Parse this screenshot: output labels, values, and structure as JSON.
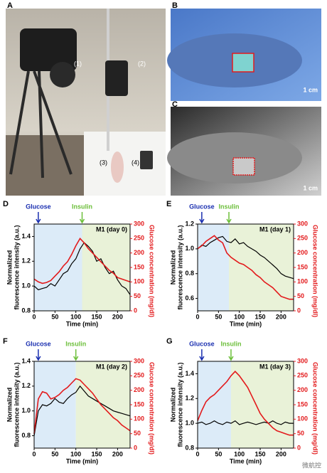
{
  "panels": {
    "A": {
      "label": "A",
      "annotations": [
        "(1)",
        "(2)",
        "(3)",
        "(4)"
      ]
    },
    "B": {
      "label": "B",
      "scale_bar": "1 cm"
    },
    "C": {
      "label": "C",
      "scale_bar": "1 cm"
    }
  },
  "watermark": "微航控",
  "chart_data": [
    {
      "type": "line",
      "panel": "D",
      "title": "M1 (day 0)",
      "xlabel": "Time (min)",
      "ylabel": [
        "Normalized",
        "fluorescence intensity (a.u.)"
      ],
      "y2label": "Glucose concentration (mg/dl)",
      "annotations": [
        {
          "text": "Glucose",
          "x": 10,
          "color": "#1a2fb0"
        },
        {
          "text": "Insulin",
          "x": 115,
          "color": "#6cbf3a"
        }
      ],
      "x": [
        0,
        10,
        20,
        30,
        40,
        50,
        60,
        70,
        80,
        90,
        100,
        110,
        120,
        130,
        140,
        150,
        160,
        170,
        180,
        190,
        200,
        210,
        220,
        230
      ],
      "series": [
        {
          "name": "Fluorescence",
          "color": "#000000",
          "values": [
            1.0,
            0.97,
            0.98,
            0.99,
            1.02,
            1.0,
            1.05,
            1.1,
            1.12,
            1.18,
            1.22,
            1.3,
            1.35,
            1.32,
            1.28,
            1.2,
            1.22,
            1.15,
            1.1,
            1.12,
            1.05,
            1.0,
            0.98,
            0.93
          ]
        },
        {
          "name": "Glucose",
          "color": "#e31a1c",
          "axis": "y2",
          "values": [
            110,
            100,
            95,
            98,
            105,
            120,
            135,
            155,
            170,
            195,
            225,
            250,
            235,
            215,
            200,
            185,
            170,
            155,
            140,
            130,
            115,
            110,
            105,
            100
          ]
        }
      ],
      "xlim": [
        0,
        230
      ],
      "xticks": [
        0,
        50,
        100,
        150,
        200
      ],
      "ylim": [
        0.8,
        1.5
      ],
      "yticks": [
        0.8,
        {
          "value": 1,
          "label": "1.0"
        },
        1.2,
        1.4
      ],
      "y2lim": [
        0,
        300
      ],
      "y2ticks": [
        0,
        50,
        100,
        150,
        200,
        250,
        300
      ]
    },
    {
      "type": "line",
      "panel": "E",
      "title": "M1 (day 1)",
      "xlabel": "Time (min)",
      "ylabel": [
        "Normalized",
        "fluorescence intensity (a.u.)"
      ],
      "y2label": "Glucose concentration (mg/dl)",
      "annotations": [
        {
          "text": "Glucose",
          "x": 10,
          "color": "#1a2fb0"
        },
        {
          "text": "Insulin",
          "x": 75,
          "color": "#6cbf3a"
        }
      ],
      "x": [
        0,
        10,
        20,
        30,
        40,
        50,
        60,
        70,
        80,
        90,
        100,
        110,
        120,
        130,
        140,
        150,
        160,
        170,
        180,
        190,
        200,
        210,
        220,
        230
      ],
      "series": [
        {
          "name": "Fluorescence",
          "color": "#000000",
          "values": [
            1.0,
            1.03,
            1.02,
            1.05,
            1.07,
            1.09,
            1.1,
            1.06,
            1.05,
            1.08,
            1.04,
            1.05,
            1.02,
            1.0,
            0.98,
            0.95,
            0.93,
            0.9,
            0.87,
            0.84,
            0.8,
            0.78,
            0.77,
            0.76
          ]
        },
        {
          "name": "Glucose",
          "color": "#e31a1c",
          "axis": "y2",
          "values": [
            215,
            225,
            240,
            250,
            260,
            245,
            235,
            200,
            185,
            175,
            165,
            160,
            150,
            140,
            125,
            115,
            100,
            90,
            80,
            65,
            50,
            45,
            40,
            40
          ]
        }
      ],
      "xlim": [
        0,
        230
      ],
      "xticks": [
        0,
        50,
        100,
        150,
        200
      ],
      "ylim": [
        0.5,
        1.2
      ],
      "yticks": [
        0.6,
        0.8,
        {
          "value": 1,
          "label": "1.0"
        },
        1.2
      ],
      "y2lim": [
        0,
        300
      ],
      "y2ticks": [
        0,
        50,
        100,
        150,
        200,
        250,
        300
      ]
    },
    {
      "type": "line",
      "panel": "F",
      "title": "M1 (day 2)",
      "xlabel": "Time (min)",
      "ylabel": [
        "Normalized",
        "fluorescence intensity (a.u.)"
      ],
      "y2label": "Glucose concentration (mg/dl)",
      "annotations": [
        {
          "text": "Glucose",
          "x": 10,
          "color": "#1a2fb0"
        },
        {
          "text": "Insulin",
          "x": 100,
          "color": "#6cbf3a"
        }
      ],
      "x": [
        0,
        10,
        20,
        30,
        40,
        50,
        60,
        70,
        80,
        90,
        100,
        110,
        120,
        130,
        140,
        150,
        160,
        170,
        180,
        190,
        200,
        210,
        220,
        230
      ],
      "series": [
        {
          "name": "Fluorescence",
          "color": "#000000",
          "values": [
            0.8,
            1.0,
            1.05,
            1.04,
            1.06,
            1.1,
            1.07,
            1.06,
            1.1,
            1.13,
            1.15,
            1.2,
            1.16,
            1.12,
            1.1,
            1.08,
            1.06,
            1.04,
            1.02,
            1.0,
            0.99,
            0.98,
            0.97,
            0.96
          ]
        },
        {
          "name": "Glucose",
          "color": "#e31a1c",
          "axis": "y2",
          "values": [
            50,
            170,
            195,
            190,
            170,
            175,
            185,
            200,
            210,
            225,
            240,
            235,
            220,
            205,
            190,
            170,
            150,
            135,
            120,
            105,
            95,
            80,
            70,
            60
          ]
        }
      ],
      "xlim": [
        0,
        230
      ],
      "xticks": [
        0,
        50,
        100,
        150,
        200
      ],
      "ylim": [
        0.7,
        1.4
      ],
      "yticks": [
        0.8,
        {
          "value": 1,
          "label": "1.0"
        },
        1.2,
        1.4
      ],
      "y2lim": [
        0,
        300
      ],
      "y2ticks": [
        0,
        50,
        100,
        150,
        200,
        250,
        300
      ]
    },
    {
      "type": "line",
      "panel": "G",
      "title": "M1 (day 3)",
      "xlabel": "Time (min)",
      "ylabel": [
        "Normalized",
        "fluorescence intensity (a.u.)"
      ],
      "y2label": "Glucose concentration (mg/dl)",
      "annotations": [
        {
          "text": "Glucose",
          "x": 10,
          "color": "#1a2fb0"
        },
        {
          "text": "Insulin",
          "x": 80,
          "color": "#6cbf3a"
        }
      ],
      "x": [
        0,
        10,
        20,
        30,
        40,
        50,
        60,
        70,
        80,
        90,
        100,
        110,
        120,
        130,
        140,
        150,
        160,
        170,
        180,
        190,
        200,
        210,
        220,
        230
      ],
      "series": [
        {
          "name": "Fluorescence",
          "color": "#000000",
          "values": [
            1.0,
            1.01,
            0.99,
            1.0,
            1.02,
            1.0,
            0.99,
            1.01,
            1.0,
            1.02,
            0.99,
            1.0,
            1.01,
            1.0,
            0.99,
            1.0,
            1.01,
            1.0,
            1.02,
            1.0,
            0.99,
            1.01,
            1.0,
            1.0
          ]
        },
        {
          "name": "Glucose",
          "color": "#e31a1c",
          "axis": "y2",
          "values": [
            95,
            130,
            160,
            175,
            185,
            200,
            215,
            230,
            250,
            265,
            250,
            230,
            210,
            180,
            150,
            120,
            100,
            85,
            70,
            60,
            55,
            50,
            45,
            45
          ]
        }
      ],
      "xlim": [
        0,
        230
      ],
      "xticks": [
        0,
        50,
        100,
        150,
        200
      ],
      "ylim": [
        0.8,
        1.5
      ],
      "yticks": [
        0.8,
        {
          "value": 1,
          "label": "1.0"
        },
        1.2,
        1.4
      ],
      "y2lim": [
        0,
        300
      ],
      "y2ticks": [
        0,
        50,
        100,
        150,
        200,
        250,
        300
      ]
    }
  ]
}
